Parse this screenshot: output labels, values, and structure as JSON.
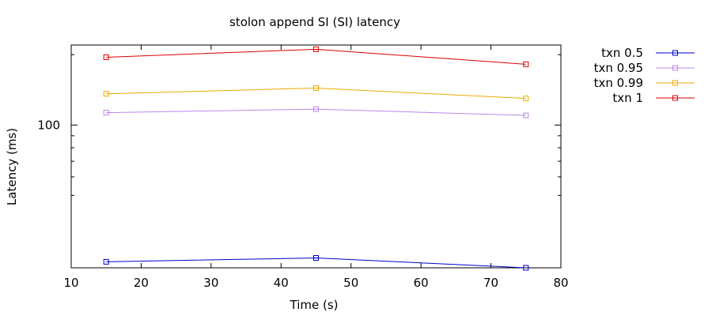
{
  "chart_data": {
    "type": "line",
    "title": "stolon append SI (SI)  latency",
    "xlabel": "Time (s)",
    "ylabel": "Latency (ms)",
    "xlim": [
      10,
      80
    ],
    "xticks": [
      "10",
      "20",
      "30",
      "40",
      "50",
      "60",
      "70",
      "80"
    ],
    "ylim": [
      24.5,
      220
    ],
    "yscale": "log",
    "yticks": [
      {
        "value": 100,
        "label": "100"
      }
    ],
    "yminor_ticks": [
      50,
      60,
      70,
      80,
      90,
      200
    ],
    "grid": false,
    "legend_position": "top-right, outside plot",
    "x": [
      15,
      45,
      75
    ],
    "series": [
      {
        "name": "txn 0.5",
        "color": "#0000cc",
        "values": [
          26,
          27,
          24.5
        ]
      },
      {
        "name": "txn 0.95",
        "color": "#bb88ee",
        "values": [
          113,
          117,
          110
        ]
      },
      {
        "name": "txn 0.99",
        "color": "#eeaa00",
        "values": [
          136,
          144,
          130
        ]
      },
      {
        "name": "txn 1",
        "color": "#dd0000",
        "values": [
          195,
          211,
          182
        ]
      }
    ]
  }
}
